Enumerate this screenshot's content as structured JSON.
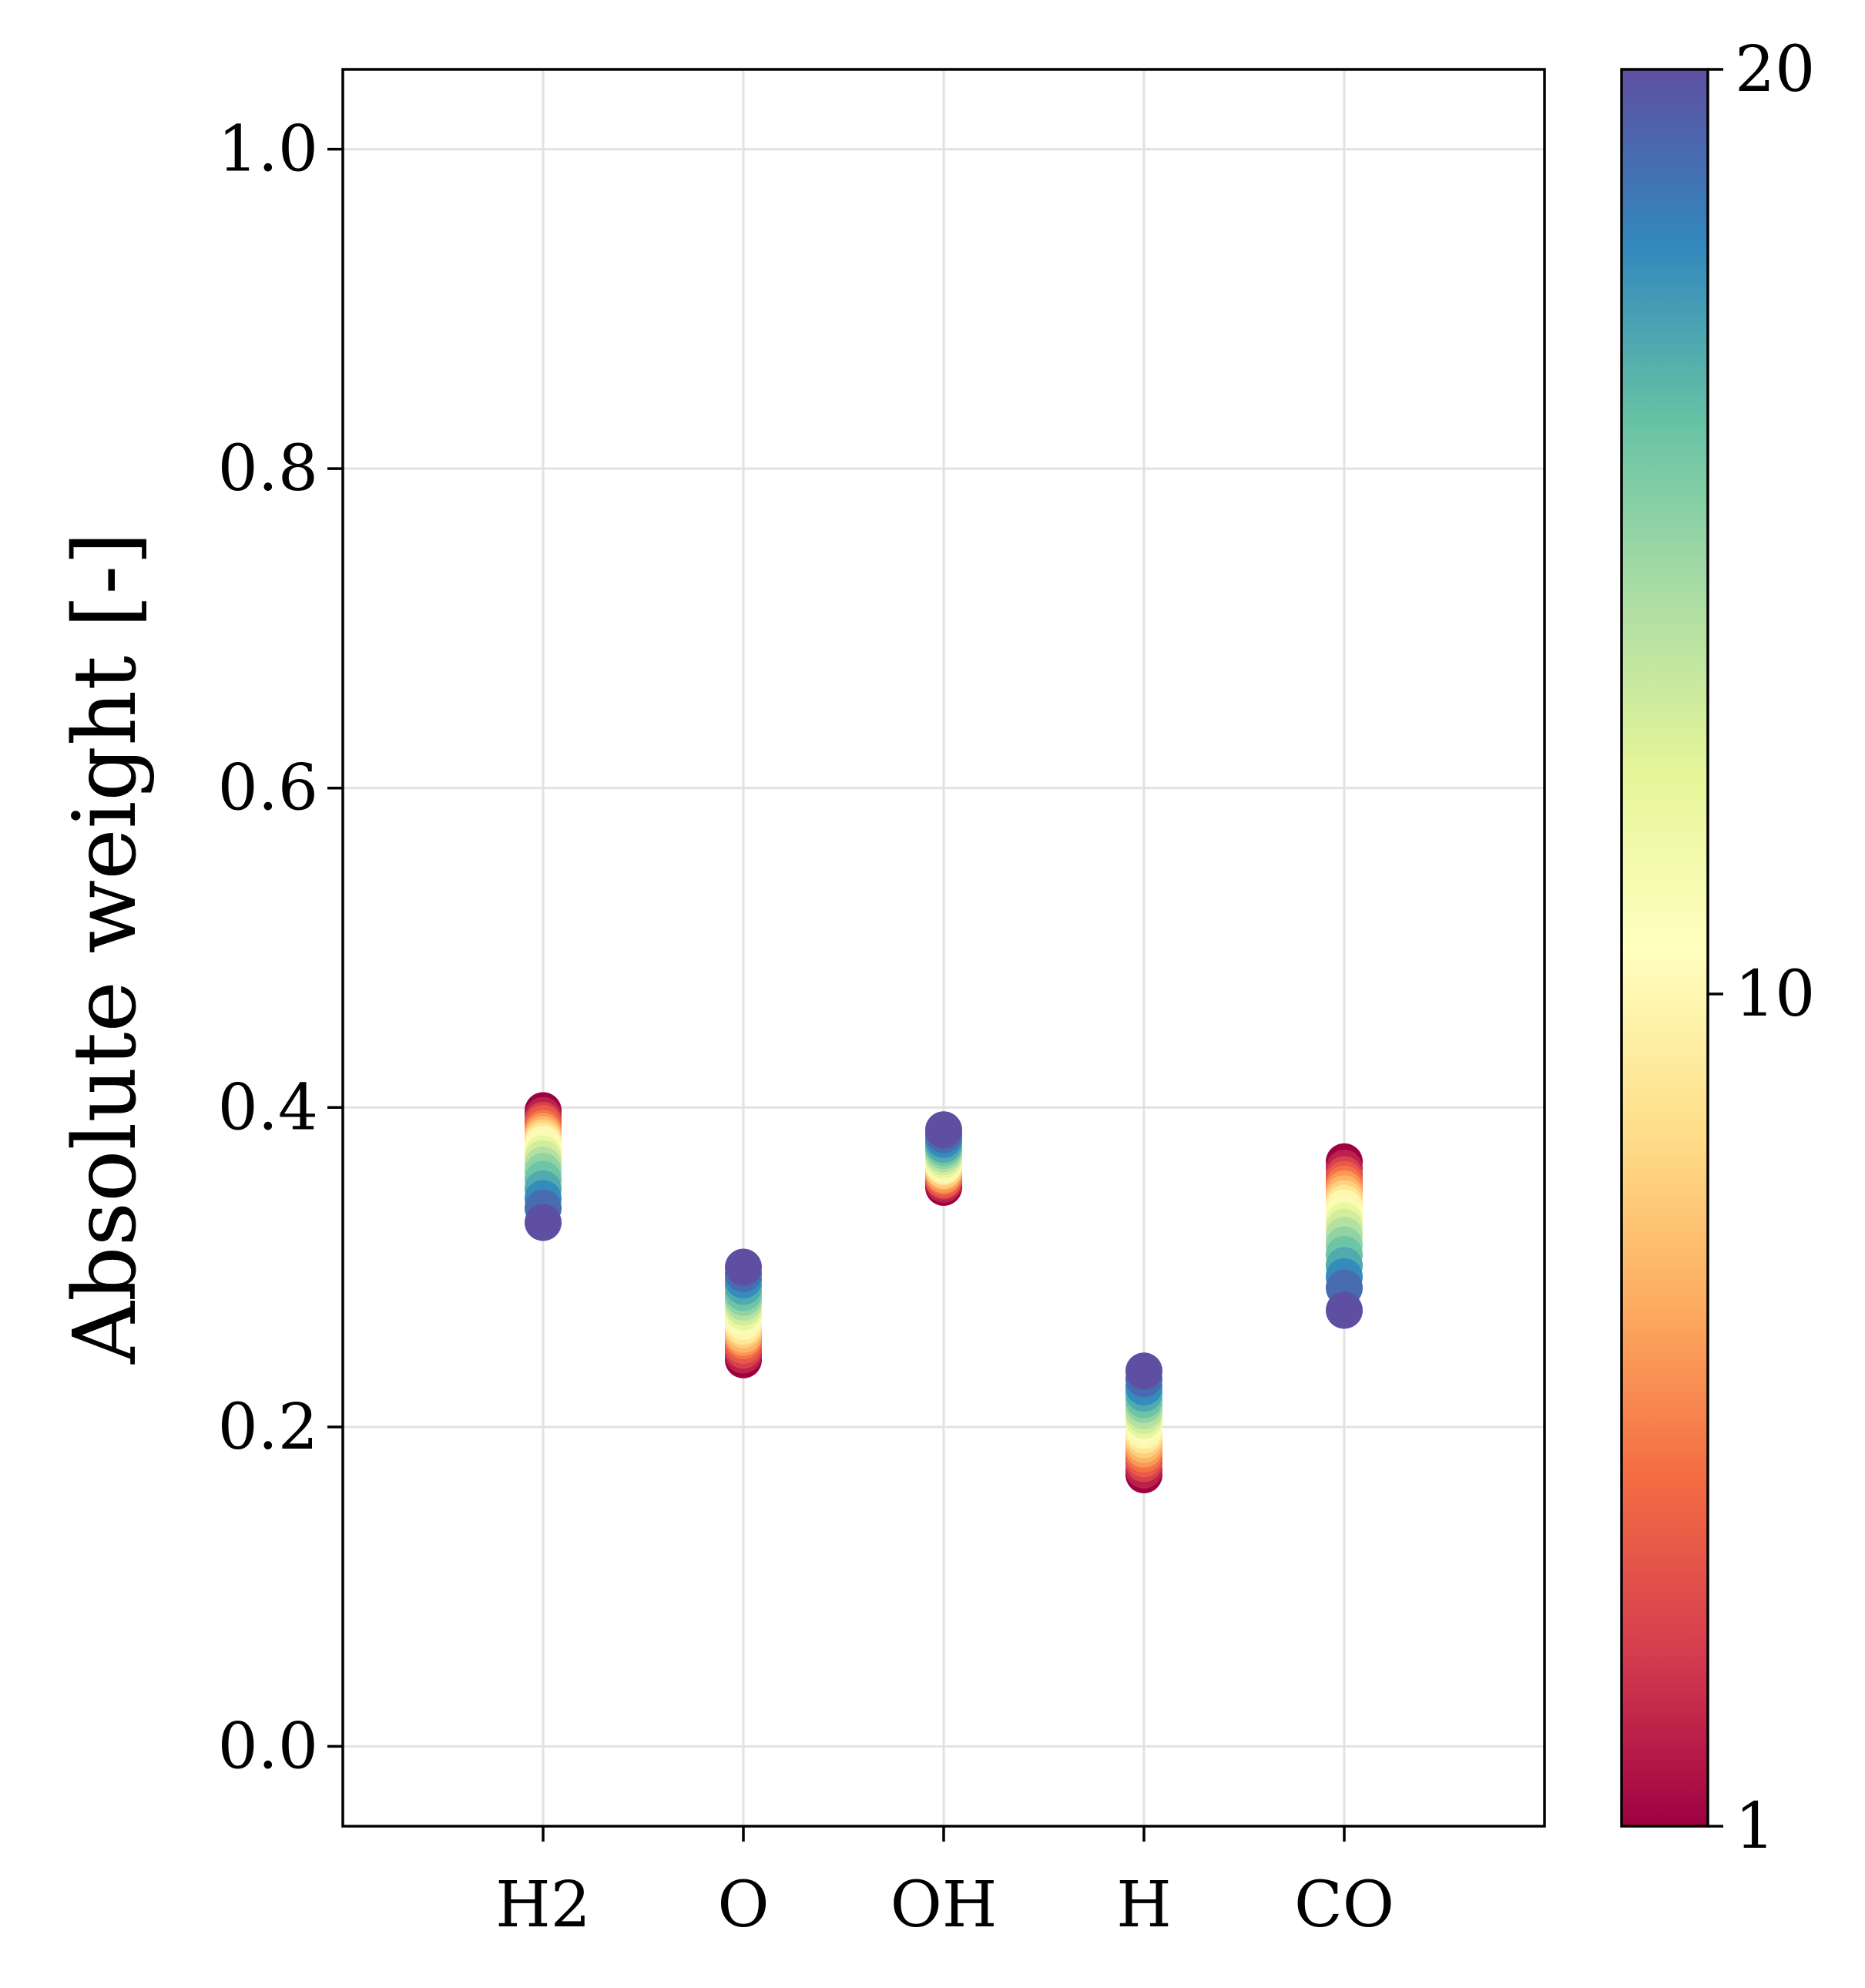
{
  "chart_data": {
    "type": "scatter",
    "title": "",
    "xlabel": "",
    "ylabel": "Absolute weight [-]",
    "categories": [
      "H2",
      "O",
      "OH",
      "H",
      "CO"
    ],
    "ylim": [
      -0.05,
      1.05
    ],
    "yticks": [
      0.0,
      0.2,
      0.4,
      0.6,
      0.8,
      1.0
    ],
    "ytick_labels": [
      "0.0",
      "0.2",
      "0.4",
      "0.6",
      "0.8",
      "1.0"
    ],
    "grid": true,
    "colormap": "Spectral",
    "colorbar": {
      "min": 1,
      "max": 20,
      "ticks": [
        1,
        10,
        20
      ],
      "tick_labels": [
        "1",
        "10",
        "20"
      ]
    },
    "color_values": [
      1,
      2,
      3,
      4,
      5,
      6,
      7,
      8,
      9,
      10,
      11,
      12,
      13,
      14,
      15,
      16,
      17,
      18,
      19,
      20
    ],
    "series": [
      {
        "category": "H2",
        "values": [
          0.398,
          0.395,
          0.392,
          0.39,
          0.387,
          0.385,
          0.383,
          0.381,
          0.379,
          0.377,
          0.374,
          0.371,
          0.368,
          0.364,
          0.36,
          0.355,
          0.349,
          0.343,
          0.337,
          0.328
        ]
      },
      {
        "category": "O",
        "values": [
          0.242,
          0.245,
          0.248,
          0.251,
          0.254,
          0.256,
          0.258,
          0.261,
          0.263,
          0.266,
          0.269,
          0.272,
          0.275,
          0.278,
          0.281,
          0.284,
          0.288,
          0.292,
          0.296,
          0.3
        ]
      },
      {
        "category": "OH",
        "values": [
          0.35,
          0.352,
          0.354,
          0.355,
          0.357,
          0.358,
          0.36,
          0.361,
          0.363,
          0.364,
          0.366,
          0.367,
          0.369,
          0.371,
          0.373,
          0.375,
          0.377,
          0.38,
          0.383,
          0.386
        ]
      },
      {
        "category": "H",
        "values": [
          0.17,
          0.173,
          0.177,
          0.18,
          0.183,
          0.186,
          0.189,
          0.192,
          0.195,
          0.198,
          0.201,
          0.204,
          0.207,
          0.21,
          0.214,
          0.217,
          0.221,
          0.225,
          0.23,
          0.235
        ]
      },
      {
        "category": "CO",
        "values": [
          0.366,
          0.362,
          0.358,
          0.355,
          0.352,
          0.349,
          0.346,
          0.343,
          0.34,
          0.337,
          0.333,
          0.329,
          0.325,
          0.32,
          0.314,
          0.308,
          0.301,
          0.294,
          0.287,
          0.273
        ]
      }
    ]
  }
}
